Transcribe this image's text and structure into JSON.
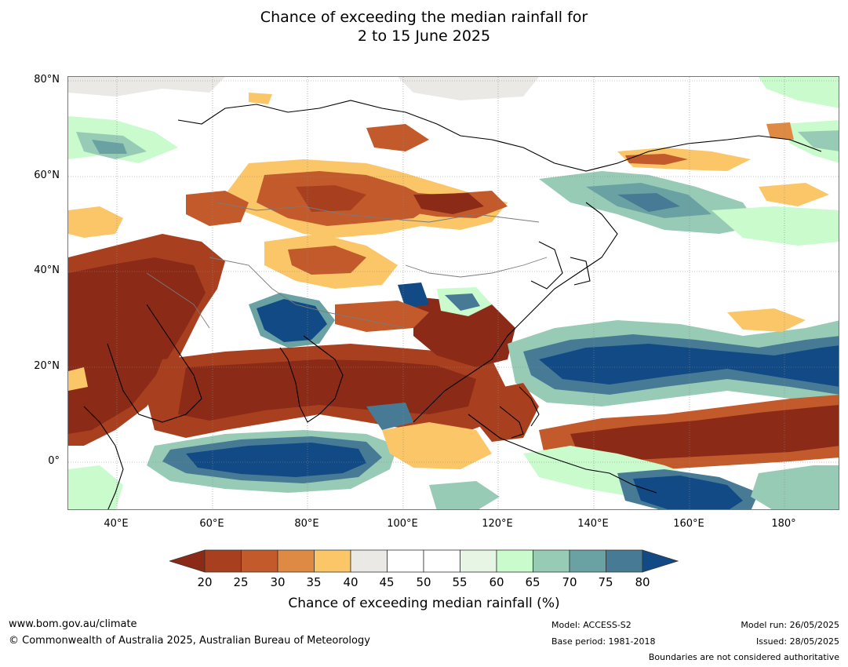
{
  "title": {
    "line1": "Chance of exceeding the median rainfall for",
    "line2": "2 to 15 June 2025"
  },
  "map": {
    "lat_labels": [
      "80°N",
      "60°N",
      "40°N",
      "20°N",
      "0°"
    ],
    "lon_labels": [
      "40°E",
      "60°E",
      "80°E",
      "100°E",
      "120°E",
      "140°E",
      "160°E",
      "180°"
    ],
    "colors": {
      "c15": "#8a2a17",
      "c20": "#a8401f",
      "c25": "#c25a2c",
      "c30": "#de8a44",
      "c35": "#fac668",
      "c40": "#ebe9e5",
      "c45": "#ffffff",
      "c50": "#ffffff",
      "c55": "#e6f5e4",
      "c60": "#c9fbcc",
      "c65": "#97cbb5",
      "c70": "#6aa2a4",
      "c75": "#477b95",
      "c80": "#124a85"
    }
  },
  "colorbar": {
    "ticks": [
      "20",
      "25",
      "30",
      "35",
      "40",
      "45",
      "50",
      "55",
      "60",
      "65",
      "70",
      "75",
      "80"
    ],
    "label": "Chance of exceeding median rainfall (%)"
  },
  "footer": {
    "url": "www.bom.gov.au/climate",
    "copyright": "© Commonwealth of Australia 2025, Australian Bureau of Meteorology",
    "model": "Model: ACCESS-S2",
    "base_period": "Base period: 1981-2018",
    "model_run": "Model run: 26/05/2025",
    "issued": "Issued: 28/05/2025",
    "disclaimer": "Boundaries are not considered authoritative"
  }
}
